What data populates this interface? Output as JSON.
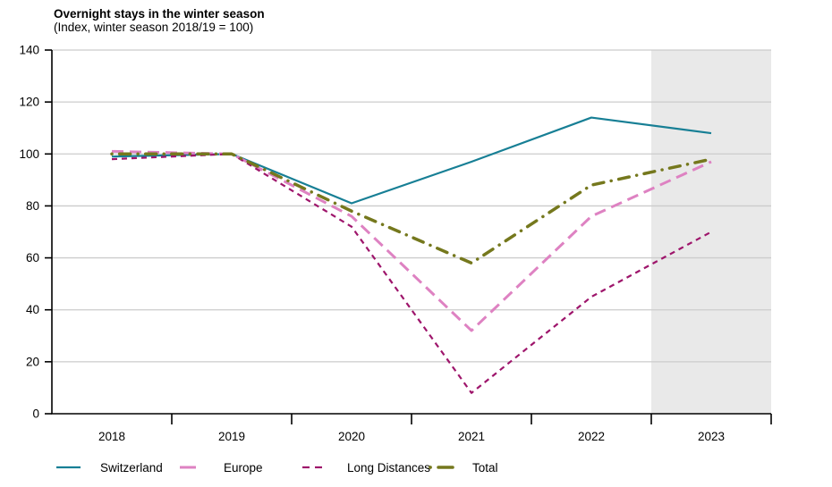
{
  "page": {
    "background": "#ffffff"
  },
  "chart_data": {
    "type": "line",
    "title": "Overnight stays in the winter season",
    "subtitle": "(Index, winter season 2018/19 = 100)",
    "categories": [
      "2018",
      "2019",
      "2020",
      "2021",
      "2022",
      "2023"
    ],
    "series": [
      {
        "name": "Switzerland",
        "color": "#177f95",
        "dash": "solid",
        "width": 2.2,
        "values": [
          99,
          100,
          81,
          97,
          114,
          108
        ]
      },
      {
        "name": "Europe",
        "color": "#de82c2",
        "dash": "long-dash",
        "width": 3.0,
        "values": [
          101,
          100,
          76,
          32,
          76,
          97
        ]
      },
      {
        "name": "Long Distances",
        "color": "#9e156b",
        "dash": "short-dash",
        "width": 2.2,
        "values": [
          98,
          100,
          72,
          8,
          45,
          70
        ]
      },
      {
        "name": "Total",
        "color": "#75781d",
        "dash": "dash-dot",
        "width": 3.5,
        "values": [
          100,
          100,
          78,
          58,
          88,
          98
        ]
      }
    ],
    "ylim": [
      0,
      140
    ],
    "yticks": [
      0,
      20,
      40,
      60,
      80,
      100,
      120,
      140
    ],
    "grid": true,
    "gridline_color": "#cccccc",
    "axis_color": "#000000",
    "legend_position": "bottom",
    "shaded_region": {
      "category": "2023",
      "color": "#e9e9e9"
    }
  }
}
